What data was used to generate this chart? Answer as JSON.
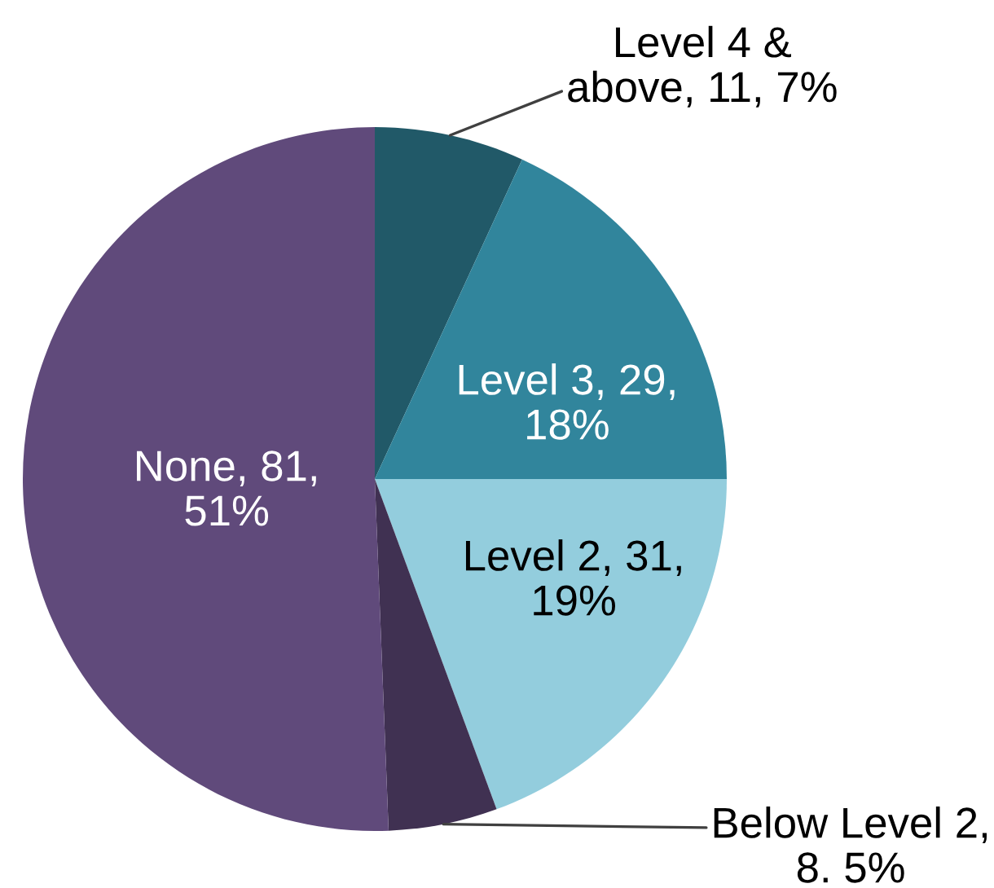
{
  "chart_data": {
    "type": "pie",
    "categories": [
      "Level 4 &\nabove",
      "Level 3",
      "Level 2",
      "Below Level 2",
      "None"
    ],
    "values": [
      11,
      29,
      31,
      8,
      81
    ],
    "value_labels": [
      ", 11, 7%",
      ", 29,\n18%",
      ", 31,\n19%",
      ",\n8. 5%",
      ", 81,\n51%"
    ],
    "colors": [
      "#215968",
      "#31859c",
      "#93cddd",
      "#403152",
      "#604a7b"
    ]
  }
}
